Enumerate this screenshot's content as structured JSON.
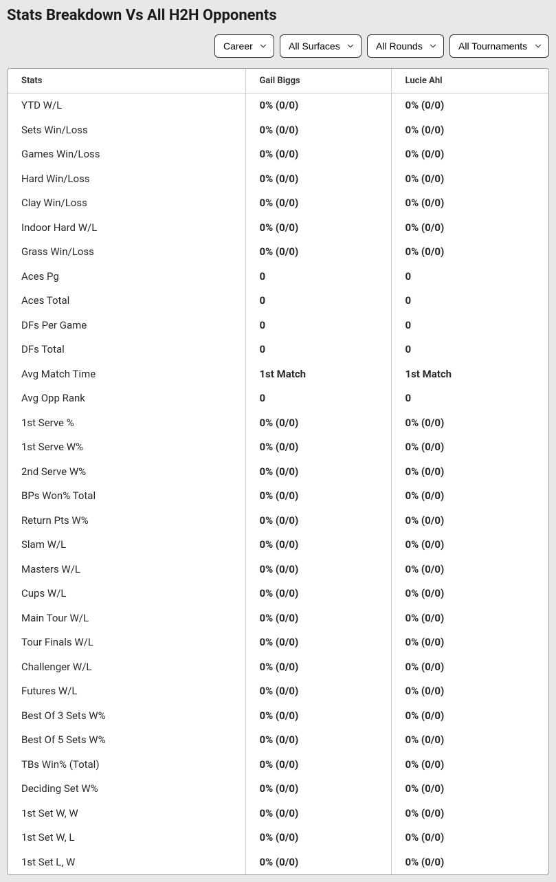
{
  "title": "Stats Breakdown Vs All H2H Opponents",
  "filters": {
    "period": {
      "selected": "Career",
      "options": [
        "Career"
      ]
    },
    "surface": {
      "selected": "All Surfaces",
      "options": [
        "All Surfaces"
      ]
    },
    "round": {
      "selected": "All Rounds",
      "options": [
        "All Rounds"
      ]
    },
    "tournament": {
      "selected": "All Tournaments",
      "options": [
        "All Tournaments"
      ]
    }
  },
  "table": {
    "headers": {
      "stats": "Stats",
      "player1": "Gail Biggs",
      "player2": "Lucie Ahl"
    },
    "rows": [
      {
        "stat": "YTD W/L",
        "p1": "0% (0/0)",
        "p2": "0% (0/0)"
      },
      {
        "stat": "Sets Win/Loss",
        "p1": "0% (0/0)",
        "p2": "0% (0/0)"
      },
      {
        "stat": "Games Win/Loss",
        "p1": "0% (0/0)",
        "p2": "0% (0/0)"
      },
      {
        "stat": "Hard Win/Loss",
        "p1": "0% (0/0)",
        "p2": "0% (0/0)"
      },
      {
        "stat": "Clay Win/Loss",
        "p1": "0% (0/0)",
        "p2": "0% (0/0)"
      },
      {
        "stat": "Indoor Hard W/L",
        "p1": "0% (0/0)",
        "p2": "0% (0/0)"
      },
      {
        "stat": "Grass Win/Loss",
        "p1": "0% (0/0)",
        "p2": "0% (0/0)"
      },
      {
        "stat": "Aces Pg",
        "p1": "0",
        "p2": "0"
      },
      {
        "stat": "Aces Total",
        "p1": "0",
        "p2": "0"
      },
      {
        "stat": "DFs Per Game",
        "p1": "0",
        "p2": "0"
      },
      {
        "stat": "DFs Total",
        "p1": "0",
        "p2": "0"
      },
      {
        "stat": "Avg Match Time",
        "p1": "1st Match",
        "p2": "1st Match"
      },
      {
        "stat": "Avg Opp Rank",
        "p1": "0",
        "p2": "0"
      },
      {
        "stat": "1st Serve %",
        "p1": "0% (0/0)",
        "p2": "0% (0/0)"
      },
      {
        "stat": "1st Serve W%",
        "p1": "0% (0/0)",
        "p2": "0% (0/0)"
      },
      {
        "stat": "2nd Serve W%",
        "p1": "0% (0/0)",
        "p2": "0% (0/0)"
      },
      {
        "stat": "BPs Won% Total",
        "p1": "0% (0/0)",
        "p2": "0% (0/0)"
      },
      {
        "stat": "Return Pts W%",
        "p1": "0% (0/0)",
        "p2": "0% (0/0)"
      },
      {
        "stat": "Slam W/L",
        "p1": "0% (0/0)",
        "p2": "0% (0/0)"
      },
      {
        "stat": "Masters W/L",
        "p1": "0% (0/0)",
        "p2": "0% (0/0)"
      },
      {
        "stat": "Cups W/L",
        "p1": "0% (0/0)",
        "p2": "0% (0/0)"
      },
      {
        "stat": "Main Tour W/L",
        "p1": "0% (0/0)",
        "p2": "0% (0/0)"
      },
      {
        "stat": "Tour Finals W/L",
        "p1": "0% (0/0)",
        "p2": "0% (0/0)"
      },
      {
        "stat": "Challenger W/L",
        "p1": "0% (0/0)",
        "p2": "0% (0/0)"
      },
      {
        "stat": "Futures W/L",
        "p1": "0% (0/0)",
        "p2": "0% (0/0)"
      },
      {
        "stat": "Best Of 3 Sets W%",
        "p1": "0% (0/0)",
        "p2": "0% (0/0)"
      },
      {
        "stat": "Best Of 5 Sets W%",
        "p1": "0% (0/0)",
        "p2": "0% (0/0)"
      },
      {
        "stat": "TBs Win% (Total)",
        "p1": "0% (0/0)",
        "p2": "0% (0/0)"
      },
      {
        "stat": "Deciding Set W%",
        "p1": "0% (0/0)",
        "p2": "0% (0/0)"
      },
      {
        "stat": "1st Set W, W",
        "p1": "0% (0/0)",
        "p2": "0% (0/0)"
      },
      {
        "stat": "1st Set W, L",
        "p1": "0% (0/0)",
        "p2": "0% (0/0)"
      },
      {
        "stat": "1st Set L, W",
        "p1": "0% (0/0)",
        "p2": "0% (0/0)"
      }
    ]
  }
}
